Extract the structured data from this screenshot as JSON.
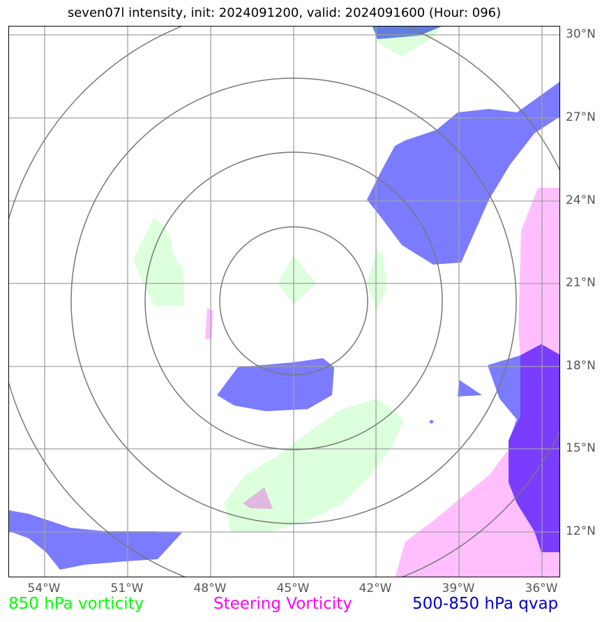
{
  "title": "seven07l intensity, init: 2024091200, valid: 2024091600 (Hour: 096)",
  "lat_labels": [
    "30°N",
    "27°N",
    "24°N",
    "21°N",
    "18°N",
    "15°N",
    "12°N"
  ],
  "lon_labels": [
    "54°W",
    "51°W",
    "48°W",
    "45°W",
    "42°W",
    "39°W",
    "36°W"
  ],
  "legend": {
    "vorticity_850": {
      "label": "850 hPa vorticity",
      "color": "#00ff00"
    },
    "steering_vorticity": {
      "label": "Steering Vorticity",
      "color": "#ff00ff"
    },
    "qvap_500_850": {
      "label": "500-850 hPa qvap",
      "color": "#0000cd"
    }
  },
  "range_rings": {
    "count": 4,
    "center": "45°W, 20.5°N"
  },
  "colors": {
    "vorticity_fill": "#dcffdc",
    "steering_fill": "#ffbfff",
    "qvap_fill": "#7b7bff",
    "overlap_fill": "#7a3cff",
    "grid": "#a0a0a0",
    "rings": "#777777"
  }
}
